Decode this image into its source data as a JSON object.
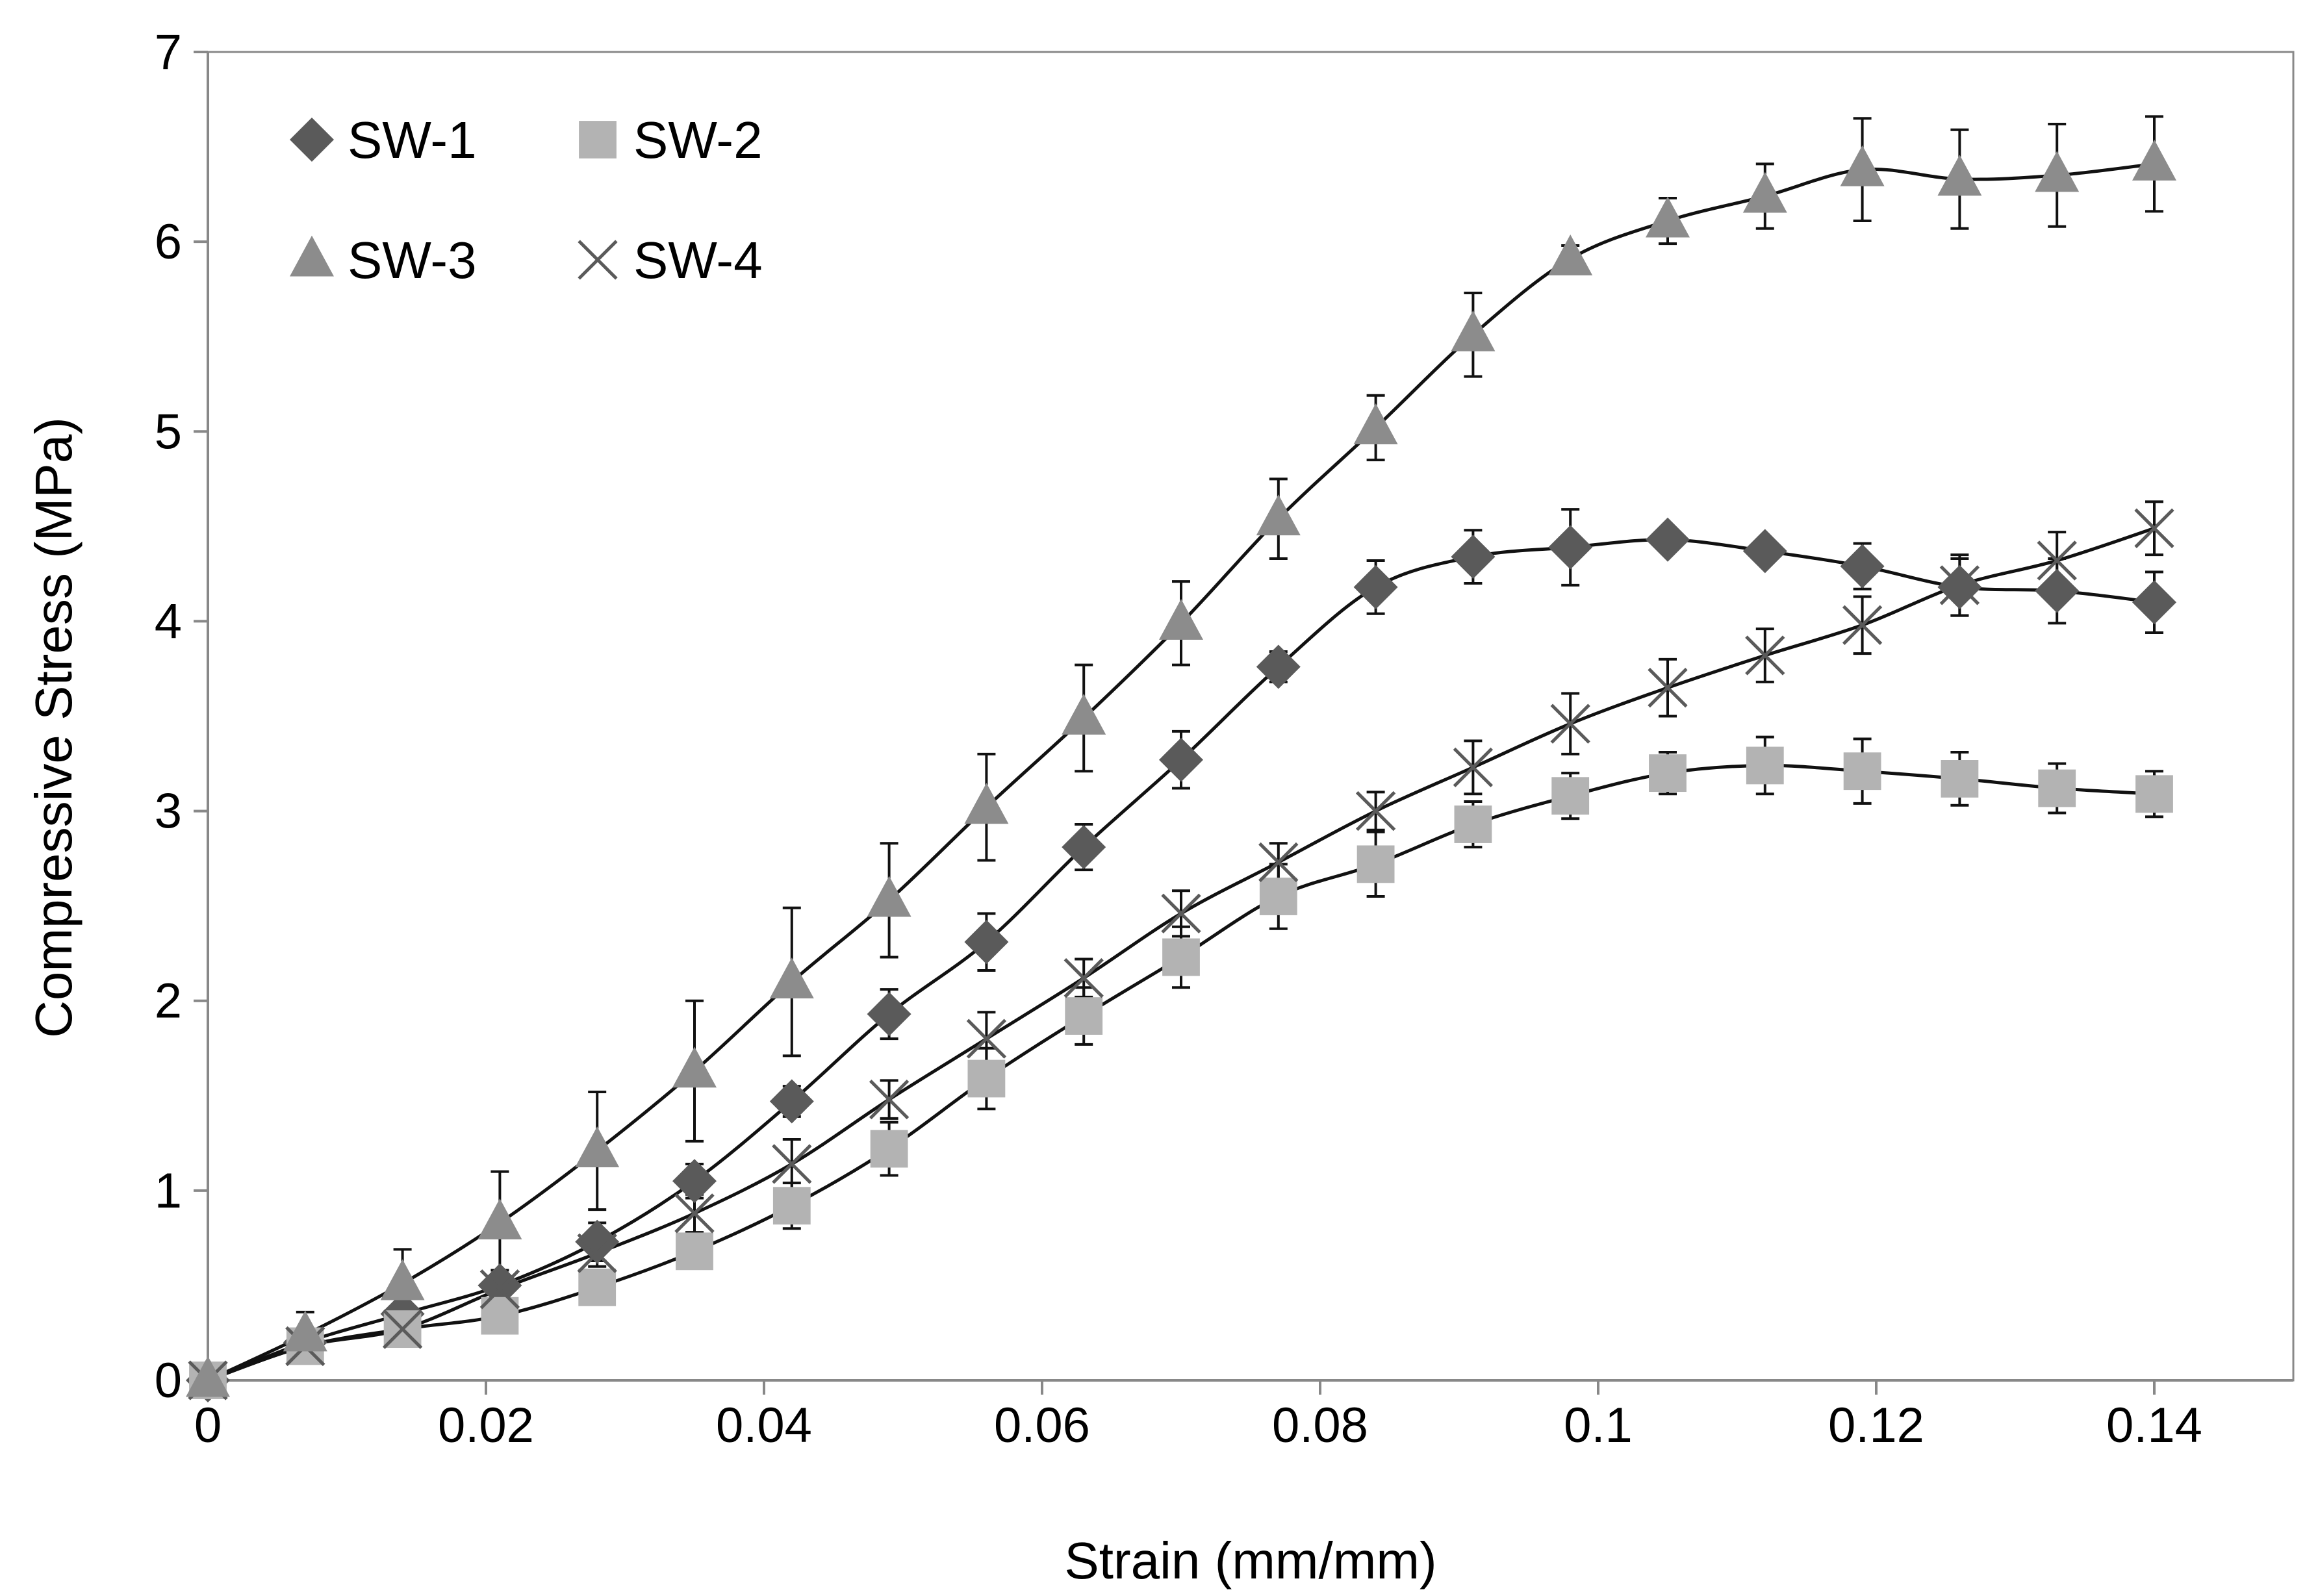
{
  "chart_data": {
    "type": "scatter",
    "title": "",
    "xlabel": "Strain (mm/mm)",
    "ylabel": "Compressive Stress (MPa)",
    "xlim": [
      0,
      0.15
    ],
    "ylim": [
      0,
      7
    ],
    "x_ticks": [
      0,
      0.02,
      0.04,
      0.06,
      0.08,
      0.1,
      0.12,
      0.14
    ],
    "x_tick_labels": [
      "0",
      "0.02",
      "0.04",
      "0.06",
      "0.08",
      "0.1",
      "0.12",
      "0.14"
    ],
    "y_ticks": [
      0,
      1,
      2,
      3,
      4,
      5,
      6,
      7
    ],
    "y_tick_labels": [
      "0",
      "1",
      "2",
      "3",
      "4",
      "5",
      "6",
      "7"
    ],
    "grid": false,
    "legend_position": "top-left",
    "x": [
      0,
      0.007,
      0.014,
      0.021,
      0.028,
      0.035,
      0.042,
      0.049,
      0.056,
      0.063,
      0.07,
      0.077,
      0.084,
      0.091,
      0.098,
      0.105,
      0.112,
      0.119,
      0.126,
      0.133,
      0.14
    ],
    "series": [
      {
        "name": "SW-1",
        "marker": "diamond",
        "color": "#5a5a5a",
        "values": [
          0,
          0.2,
          0.35,
          0.5,
          0.73,
          1.05,
          1.47,
          1.93,
          2.31,
          2.81,
          3.27,
          3.76,
          4.18,
          4.34,
          4.39,
          4.43,
          4.37,
          4.29,
          4.18,
          4.16,
          4.1
        ],
        "error": [
          0,
          0,
          0,
          0.08,
          0.1,
          0.09,
          0.08,
          0.13,
          0.15,
          0.12,
          0.15,
          0.08,
          0.14,
          0.14,
          0.2,
          0.06,
          0.06,
          0.12,
          0.15,
          0.17,
          0.16
        ]
      },
      {
        "name": "SW-2",
        "marker": "square",
        "color": "#b3b3b3",
        "values": [
          0,
          0.18,
          0.27,
          0.34,
          0.49,
          0.68,
          0.92,
          1.22,
          1.59,
          1.92,
          2.23,
          2.55,
          2.72,
          2.93,
          3.08,
          3.2,
          3.24,
          3.21,
          3.17,
          3.12,
          3.09
        ],
        "error": [
          0,
          0,
          0,
          0,
          0,
          0,
          0.12,
          0.14,
          0.16,
          0.15,
          0.16,
          0.17,
          0.17,
          0.12,
          0.12,
          0.11,
          0.15,
          0.17,
          0.14,
          0.13,
          0.12
        ]
      },
      {
        "name": "SW-3",
        "marker": "triangle",
        "color": "#8c8c8c",
        "values": [
          0,
          0.24,
          0.51,
          0.83,
          1.21,
          1.63,
          2.1,
          2.53,
          3.02,
          3.49,
          3.99,
          4.54,
          5.02,
          5.51,
          5.91,
          6.11,
          6.24,
          6.38,
          6.33,
          6.35,
          6.41
        ],
        "error": [
          0,
          0.12,
          0.18,
          0.27,
          0.31,
          0.37,
          0.39,
          0.3,
          0.28,
          0.28,
          0.22,
          0.21,
          0.17,
          0.22,
          0.07,
          0.12,
          0.17,
          0.27,
          0.26,
          0.27,
          0.25
        ]
      },
      {
        "name": "SW-4",
        "marker": "x",
        "color": "#5a5a5a",
        "values": [
          0,
          0.18,
          0.27,
          0.48,
          0.67,
          0.88,
          1.14,
          1.48,
          1.8,
          2.12,
          2.46,
          2.73,
          3.0,
          3.23,
          3.46,
          3.65,
          3.82,
          3.98,
          4.19,
          4.32,
          4.49
        ],
        "error": [
          0,
          0,
          0,
          0.05,
          0.07,
          0.1,
          0.13,
          0.1,
          0.14,
          0.1,
          0.12,
          0.1,
          0.1,
          0.14,
          0.16,
          0.15,
          0.14,
          0.15,
          0.16,
          0.15,
          0.14
        ]
      }
    ]
  }
}
